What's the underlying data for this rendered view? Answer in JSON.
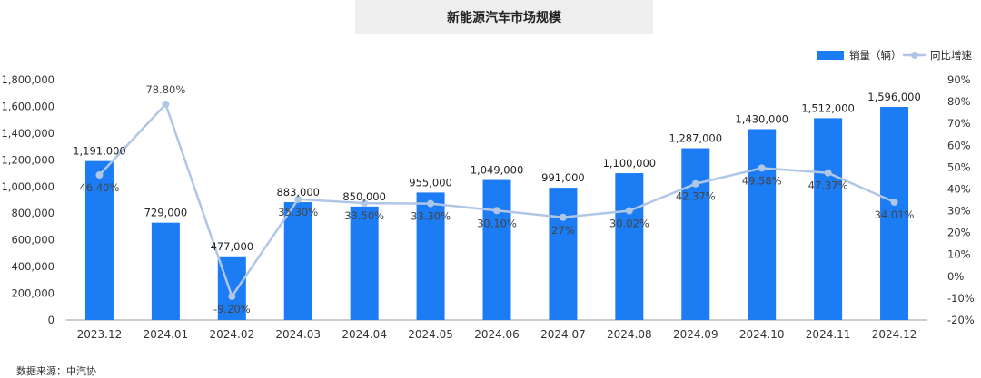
{
  "title": "新能源汽车市场规模",
  "source": "数据来源：中汽协",
  "colors": {
    "bar": "#1c7cf4",
    "line": "#b0c6e6",
    "marker": "#b0c6e6"
  },
  "chart_data": {
    "type": "bar",
    "title": "新能源汽车市场规模",
    "categories": [
      "2023.12",
      "2024.01",
      "2024.02",
      "2024.03",
      "2024.04",
      "2024.05",
      "2024.06",
      "2024.07",
      "2024.08",
      "2024.09",
      "2024.10",
      "2024.11",
      "2024.12"
    ],
    "series": [
      {
        "name": "销量（辆）",
        "type": "bar",
        "axis": "left",
        "values": [
          1191000,
          729000,
          477000,
          883000,
          850000,
          955000,
          1049000,
          991000,
          1100000,
          1287000,
          1430000,
          1512000,
          1596000
        ],
        "labels": [
          "1,191,000",
          "729,000",
          "477,000",
          "883,000",
          "850,000",
          "955,000",
          "1,049,000",
          "991,000",
          "1,100,000",
          "1,287,000",
          "1,430,000",
          "1,512,000",
          "1,596,000"
        ]
      },
      {
        "name": "同比增速",
        "type": "line",
        "axis": "right",
        "values": [
          46.4,
          78.8,
          -9.2,
          35.3,
          33.5,
          33.3,
          30.1,
          27,
          30.02,
          42.37,
          49.58,
          47.37,
          34.01
        ],
        "labels": [
          "46.40%",
          "78.80%",
          "-9.20%",
          "35.30%",
          "33.50%",
          "33.30%",
          "30.10%",
          "27%",
          "30.02%",
          "42.37%",
          "49.58%",
          "47.37%",
          "34.01%"
        ]
      }
    ],
    "ylim": [
      0,
      1800000
    ],
    "y_ticks": [
      "0",
      "200,000",
      "400,000",
      "600,000",
      "800,000",
      "1,000,000",
      "1,200,000",
      "1,400,000",
      "1,600,000",
      "1,800,000"
    ],
    "y2lim": [
      -20,
      90
    ],
    "y2_ticks": [
      "-20%",
      "-10%",
      "0%",
      "10%",
      "20%",
      "30%",
      "40%",
      "50%",
      "60%",
      "70%",
      "80%",
      "90%"
    ],
    "legend": {
      "position": "top-right",
      "items": [
        "销量（辆）",
        "同比增速"
      ]
    },
    "grid": false
  }
}
